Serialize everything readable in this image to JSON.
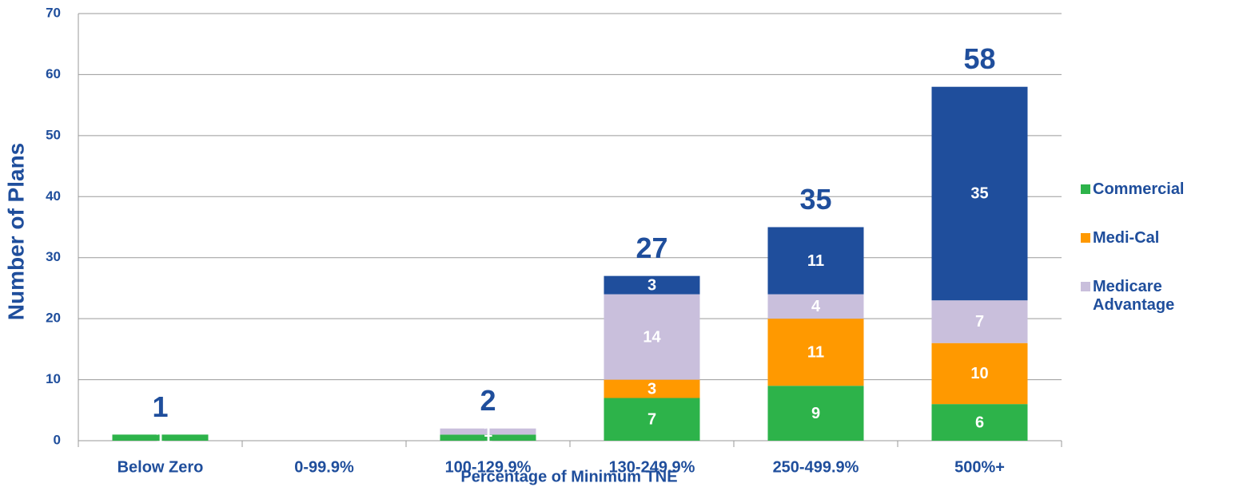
{
  "chart_data": {
    "type": "stacked_bar",
    "y_label": "Number of Plans",
    "x_label": "Percentage of Minimum TNE",
    "categories": [
      "Below Zero",
      "0-99.9%",
      "100-129.9%",
      "130-249.9%",
      "250-499.9%",
      "500%+"
    ],
    "series": [
      {
        "name": "Commercial",
        "color": "#2db34a",
        "values": [
          1,
          0,
          1,
          7,
          9,
          6
        ]
      },
      {
        "name": "Medi-Cal",
        "color": "#ff9900",
        "values": [
          0,
          0,
          0,
          3,
          11,
          10
        ]
      },
      {
        "name": "Medicare Advantage",
        "color": "#c9bfdc",
        "values": [
          0,
          0,
          1,
          14,
          4,
          7
        ]
      },
      {
        "color": "#1f4e9c",
        "values": [
          0,
          0,
          0,
          3,
          11,
          35
        ]
      }
    ],
    "totals": [
      1,
      null,
      2,
      27,
      35,
      58
    ],
    "ylim": [
      0,
      70
    ],
    "yticks": [
      0,
      10,
      20,
      30,
      40,
      50,
      60,
      70
    ],
    "grid": true
  }
}
